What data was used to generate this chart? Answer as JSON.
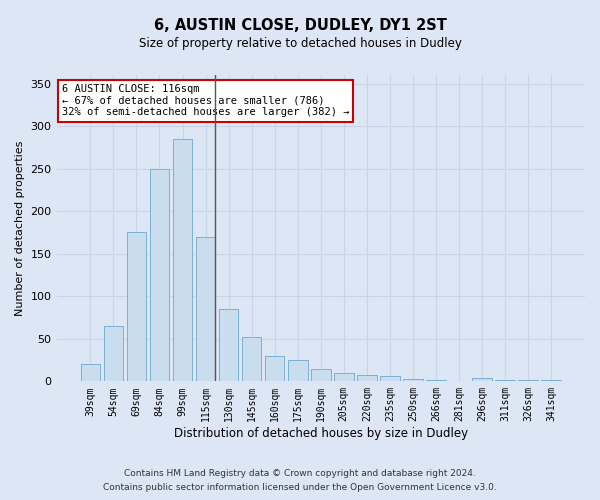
{
  "title1": "6, AUSTIN CLOSE, DUDLEY, DY1 2ST",
  "title2": "Size of property relative to detached houses in Dudley",
  "xlabel": "Distribution of detached houses by size in Dudley",
  "ylabel": "Number of detached properties",
  "categories": [
    "39sqm",
    "54sqm",
    "69sqm",
    "84sqm",
    "99sqm",
    "115sqm",
    "130sqm",
    "145sqm",
    "160sqm",
    "175sqm",
    "190sqm",
    "205sqm",
    "220sqm",
    "235sqm",
    "250sqm",
    "266sqm",
    "281sqm",
    "296sqm",
    "311sqm",
    "326sqm",
    "341sqm"
  ],
  "values": [
    20,
    65,
    175,
    250,
    285,
    170,
    85,
    52,
    30,
    25,
    15,
    10,
    8,
    6,
    3,
    1,
    0,
    4,
    1,
    1,
    1
  ],
  "bar_color": "#c9ddef",
  "bar_edge_color": "#7aafd4",
  "highlight_bar_index": 5,
  "highlight_line_color": "#555555",
  "annotation_text": "6 AUSTIN CLOSE: 116sqm\n← 67% of detached houses are smaller (786)\n32% of semi-detached houses are larger (382) →",
  "annotation_box_color": "#ffffff",
  "annotation_box_edge_color": "#cc0000",
  "grid_color": "#c8d4e8",
  "background_color": "#dce6f5",
  "plot_background_color": "#dce6f5",
  "footer1": "Contains HM Land Registry data © Crown copyright and database right 2024.",
  "footer2": "Contains public sector information licensed under the Open Government Licence v3.0.",
  "ylim": [
    0,
    360
  ],
  "yticks": [
    0,
    50,
    100,
    150,
    200,
    250,
    300,
    350
  ]
}
